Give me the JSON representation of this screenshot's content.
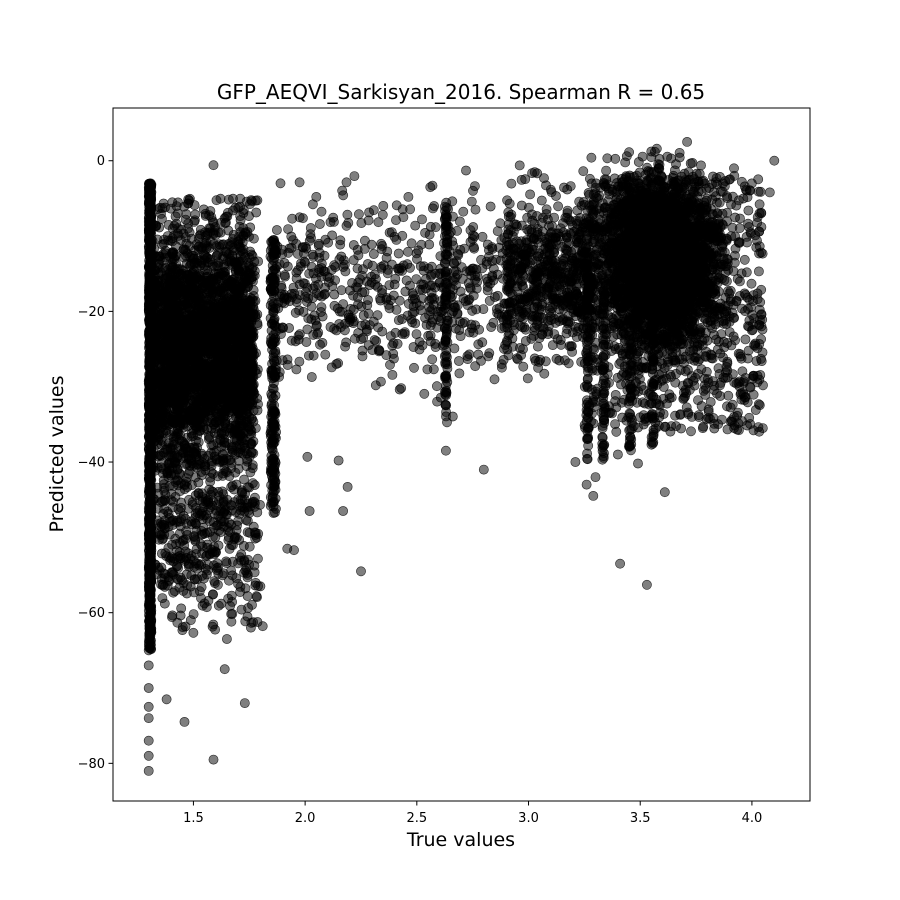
{
  "chart_data": {
    "type": "scatter",
    "title": "GFP_AEQVI_Sarkisyan_2016. Spearman R = 0.65",
    "xlabel": "True values",
    "ylabel": "Predicted values",
    "xlim": [
      1.14,
      4.26
    ],
    "ylim": [
      -85,
      7
    ],
    "xticks": [
      1.5,
      2.0,
      2.5,
      3.0,
      3.5,
      4.0
    ],
    "xtick_labels": [
      "1.5",
      "2.0",
      "2.5",
      "3.0",
      "3.5",
      "4.0"
    ],
    "yticks": [
      0,
      -20,
      -40,
      -60,
      -80
    ],
    "ytick_labels": [
      "0",
      "−20",
      "−40",
      "−60",
      "−80"
    ],
    "grid": false,
    "legend": "none",
    "marker_color": "#000000",
    "marker_alpha": 0.5,
    "clusters": [
      {
        "x_range": [
          1.3,
          1.31
        ],
        "y_range": [
          -81,
          -3
        ],
        "density": "very high"
      },
      {
        "x_range": [
          1.31,
          1.8
        ],
        "y_range": [
          -65,
          -4
        ],
        "density": "very high"
      },
      {
        "x_range": [
          1.85,
          1.87
        ],
        "y_range": [
          -45,
          -10
        ],
        "density": "high"
      },
      {
        "x_range": [
          1.87,
          2.9
        ],
        "y_range": [
          -55,
          -1
        ],
        "density": "sparse"
      },
      {
        "x_range": [
          2.9,
          3.25
        ],
        "y_range": [
          -40,
          0
        ],
        "density": "medium"
      },
      {
        "x_range": [
          3.25,
          4.1
        ],
        "y_range": [
          -45,
          2
        ],
        "density": "very high"
      }
    ],
    "points": [
      {
        "x": 1.59,
        "y": -0.6
      },
      {
        "x": 1.59,
        "y": -79.5
      },
      {
        "x": 1.46,
        "y": -74.5
      },
      {
        "x": 1.73,
        "y": -72
      },
      {
        "x": 1.3,
        "y": -81
      },
      {
        "x": 1.3,
        "y": -79
      },
      {
        "x": 1.3,
        "y": -77
      },
      {
        "x": 1.3,
        "y": -74
      },
      {
        "x": 1.3,
        "y": -72.5
      },
      {
        "x": 1.3,
        "y": -70
      },
      {
        "x": 1.3,
        "y": -67
      },
      {
        "x": 1.3,
        "y": -65
      },
      {
        "x": 1.38,
        "y": -71.5
      },
      {
        "x": 1.64,
        "y": -67.5
      },
      {
        "x": 1.65,
        "y": -63.5
      },
      {
        "x": 1.81,
        "y": -61.8
      },
      {
        "x": 1.8,
        "y": -56.5
      },
      {
        "x": 1.95,
        "y": -51.7
      },
      {
        "x": 1.92,
        "y": -51.5
      },
      {
        "x": 2.25,
        "y": -54.5
      },
      {
        "x": 2.17,
        "y": -46.5
      },
      {
        "x": 2.19,
        "y": -43.3
      },
      {
        "x": 2.02,
        "y": -46.5
      },
      {
        "x": 2.15,
        "y": -39.8
      },
      {
        "x": 2.01,
        "y": -39.3
      },
      {
        "x": 2.63,
        "y": -38.5
      },
      {
        "x": 2.8,
        "y": -41
      },
      {
        "x": 3.41,
        "y": -53.5
      },
      {
        "x": 3.53,
        "y": -56.3
      },
      {
        "x": 3.61,
        "y": -44
      },
      {
        "x": 3.29,
        "y": -44.5
      },
      {
        "x": 3.26,
        "y": -43
      },
      {
        "x": 3.3,
        "y": -42
      },
      {
        "x": 3.4,
        "y": -39
      },
      {
        "x": 3.49,
        "y": -40.2
      },
      {
        "x": 3.21,
        "y": -40
      },
      {
        "x": 2.72,
        "y": -1.3
      },
      {
        "x": 2.57,
        "y": -3.3
      },
      {
        "x": 2.35,
        "y": -6
      },
      {
        "x": 2.44,
        "y": -7.5
      },
      {
        "x": 2.05,
        "y": -4.8
      },
      {
        "x": 1.89,
        "y": -3
      },
      {
        "x": 3.89,
        "y": -24.2
      },
      {
        "x": 3.94,
        "y": -29.5
      },
      {
        "x": 4.08,
        "y": -4.2
      },
      {
        "x": 4.1,
        "y": 0
      },
      {
        "x": 3.92,
        "y": -1
      },
      {
        "x": 3.71,
        "y": 2.5
      }
    ]
  }
}
